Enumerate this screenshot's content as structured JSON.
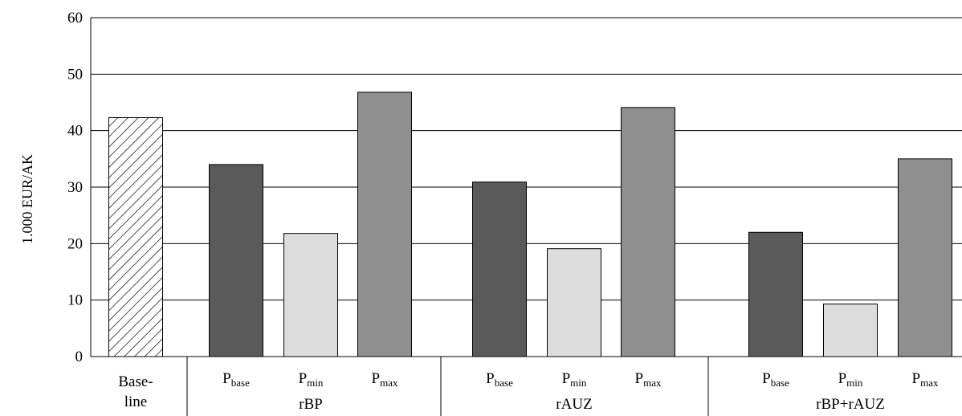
{
  "chart_data": {
    "type": "bar",
    "ylabel": "1.000 EUR/AK",
    "ylim": [
      0,
      60
    ],
    "yticks": [
      "0",
      "10",
      "20",
      "30",
      "40",
      "50",
      "60"
    ],
    "grid": true,
    "bars": [
      {
        "group": "",
        "label": "Base-line",
        "value": 42.3,
        "style": "hatched"
      },
      {
        "group": "rBP",
        "label_main": "P",
        "label_sub": "base",
        "value": 34.0,
        "style": "dark"
      },
      {
        "group": "rBP",
        "label_main": "P",
        "label_sub": "min",
        "value": 21.8,
        "style": "light"
      },
      {
        "group": "rBP",
        "label_main": "P",
        "label_sub": "max",
        "value": 46.8,
        "style": "medium"
      },
      {
        "group": "rAUZ",
        "label_main": "P",
        "label_sub": "base",
        "value": 30.9,
        "style": "dark"
      },
      {
        "group": "rAUZ",
        "label_main": "P",
        "label_sub": "min",
        "value": 19.1,
        "style": "light"
      },
      {
        "group": "rAUZ",
        "label_main": "P",
        "label_sub": "max",
        "value": 44.1,
        "style": "medium"
      },
      {
        "group": "rBP+rAUZ",
        "label_main": "P",
        "label_sub": "base",
        "value": 22.0,
        "style": "dark"
      },
      {
        "group": "rBP+rAUZ",
        "label_main": "P",
        "label_sub": "min",
        "value": 9.3,
        "style": "light"
      },
      {
        "group": "rBP+rAUZ",
        "label_main": "P",
        "label_sub": "max",
        "value": 35.0,
        "style": "medium"
      }
    ],
    "baseline_label_lines": [
      "Base-",
      "line"
    ],
    "groups": [
      "rBP",
      "rAUZ",
      "rBP+rAUZ"
    ],
    "colors": {
      "dark": "#5a5a5a",
      "light": "#dcdcdc",
      "medium": "#8f8f8f",
      "grid": "#000000"
    }
  }
}
